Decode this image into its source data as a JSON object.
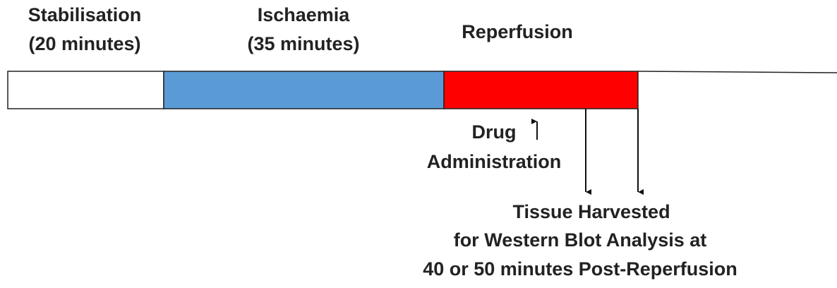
{
  "phases": [
    {
      "label": "Stabilisation",
      "sublabel": "(20 minutes)"
    },
    {
      "label": "Ischaemia",
      "sublabel": "(35 minutes)"
    },
    {
      "label": "Reperfusion"
    }
  ],
  "drug": {
    "line1": "Drug",
    "line2": "Administration"
  },
  "harvest": {
    "lines": [
      "Tissue Harvested",
      "for Western Blot Analysis at",
      "40 or 50 minutes Post-Reperfusion"
    ]
  }
}
